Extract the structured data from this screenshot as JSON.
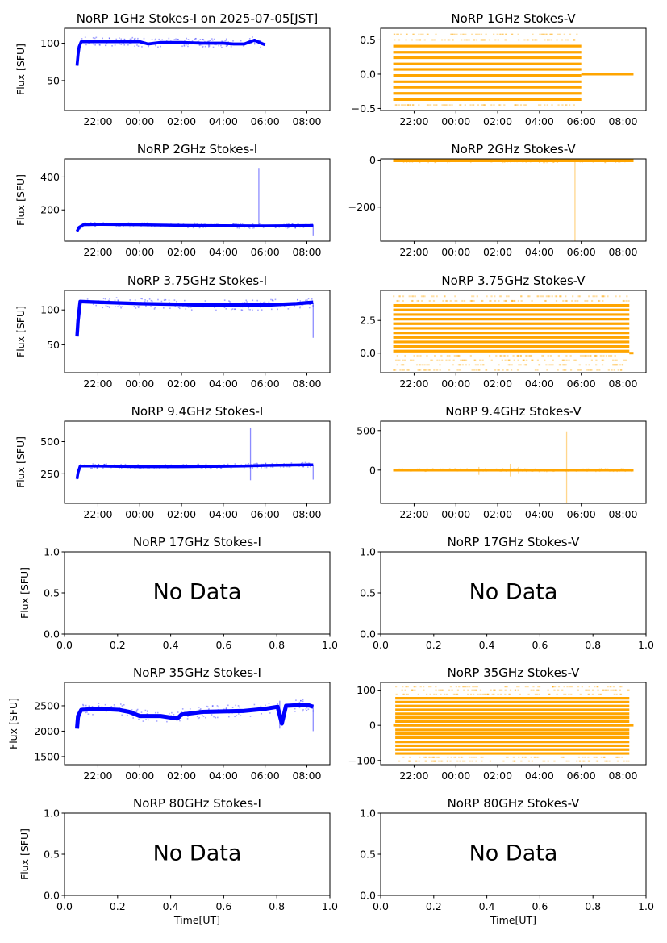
{
  "figure_title": "NoRP 1GHz Stokes-I on 2025-07-05[JST]",
  "colors": {
    "stokes_i": "#0000ff",
    "stokes_v": "#ffa500",
    "axis": "#000000"
  },
  "chart_data": [
    {
      "id": "1ghz-i",
      "type": "scatter",
      "title": "NoRP 1GHz Stokes-I on 2025-07-05[JST]",
      "ylabel": "Flux [SFU]",
      "xlabel": "",
      "stokes": "I",
      "has_data": true,
      "xlim": [
        20.4,
        33.1
      ],
      "ylim": [
        10,
        120
      ],
      "yticks": [
        50,
        100
      ],
      "ytick_labels": [
        "50",
        "100"
      ],
      "xticks": [
        22,
        24,
        26,
        28,
        30,
        32
      ],
      "xtick_labels": [
        "22:00",
        "00:00",
        "02:00",
        "04:00",
        "06:00",
        "08:00"
      ],
      "x": [
        21.0,
        21.05,
        21.1,
        21.2,
        21.5,
        22,
        23,
        24,
        24.4,
        25,
        26,
        27,
        28,
        28.5,
        29,
        29.5,
        29.8,
        30.0
      ],
      "y": [
        70,
        85,
        95,
        102,
        102,
        102,
        102,
        102,
        99,
        101,
        101,
        100,
        100,
        99,
        99,
        104,
        100,
        98
      ],
      "band": 4,
      "start": 21.0,
      "end": 30.0,
      "spikes": [
        {
          "x": 29.5,
          "lo": 98,
          "hi": 105
        }
      ]
    },
    {
      "id": "1ghz-v",
      "type": "scatter",
      "title": "NoRP 1GHz Stokes-V",
      "ylabel": "",
      "xlabel": "",
      "stokes": "V",
      "has_data": true,
      "xlim": [
        20.4,
        33.1
      ],
      "ylim": [
        -0.53,
        0.67
      ],
      "yticks": [
        -0.5,
        0.0,
        0.5
      ],
      "ytick_labels": [
        "−0.5",
        "0.0",
        "0.5"
      ],
      "xticks": [
        22,
        24,
        26,
        28,
        30,
        32
      ],
      "xtick_labels": [
        "22:00",
        "00:00",
        "02:00",
        "04:00",
        "06:00",
        "08:00"
      ],
      "levels": [
        -0.45,
        -0.37,
        -0.28,
        -0.19,
        -0.11,
        -0.02,
        0.07,
        0.15,
        0.24,
        0.32,
        0.41,
        0.5,
        0.58
      ],
      "dense_levels": [
        -0.37,
        -0.28,
        -0.19,
        -0.11,
        -0.02,
        0.07,
        0.15,
        0.24,
        0.32,
        0.41
      ],
      "start": 21.0,
      "end": 30.0,
      "tail": {
        "start": 30.0,
        "end": 32.5,
        "y": 0.0
      }
    },
    {
      "id": "2ghz-i",
      "type": "scatter",
      "title": "NoRP 2GHz Stokes-I",
      "ylabel": "Flux [SFU]",
      "xlabel": "",
      "stokes": "I",
      "has_data": true,
      "xlim": [
        20.4,
        33.1
      ],
      "ylim": [
        10,
        510
      ],
      "yticks": [
        200,
        400
      ],
      "ytick_labels": [
        "200",
        "400"
      ],
      "xticks": [
        22,
        24,
        26,
        28,
        30,
        32
      ],
      "xtick_labels": [
        "22:00",
        "00:00",
        "02:00",
        "04:00",
        "06:00",
        "08:00"
      ],
      "x": [
        21.0,
        21.1,
        21.3,
        22,
        24,
        26,
        28,
        30,
        32,
        32.3
      ],
      "y": [
        70,
        95,
        110,
        112,
        110,
        106,
        104,
        103,
        105,
        105
      ],
      "band": 10,
      "start": 21.0,
      "end": 32.3,
      "spikes": [
        {
          "x": 29.7,
          "lo": 100,
          "hi": 455
        },
        {
          "x": 32.3,
          "lo": 45,
          "hi": 110
        }
      ]
    },
    {
      "id": "2ghz-v",
      "type": "scatter",
      "title": "NoRP 2GHz Stokes-V",
      "ylabel": "",
      "xlabel": "",
      "stokes": "V",
      "has_data": true,
      "xlim": [
        20.4,
        33.1
      ],
      "ylim": [
        -345,
        5
      ],
      "yticks": [
        -200,
        0
      ],
      "ytick_labels": [
        "−200",
        "0"
      ],
      "xticks": [
        22,
        24,
        26,
        28,
        30,
        32
      ],
      "xtick_labels": [
        "22:00",
        "00:00",
        "02:00",
        "04:00",
        "06:00",
        "08:00"
      ],
      "x": [
        21.0,
        32.5
      ],
      "y": [
        -3,
        -3
      ],
      "band": 5,
      "start": 21.0,
      "end": 32.5,
      "spikes": [
        {
          "x": 29.7,
          "lo": -345,
          "hi": -5
        }
      ]
    },
    {
      "id": "3.75ghz-i",
      "type": "scatter",
      "title": "NoRP 3.75GHz Stokes-I",
      "ylabel": "Flux [SFU]",
      "xlabel": "",
      "stokes": "I",
      "has_data": true,
      "xlim": [
        20.4,
        33.1
      ],
      "ylim": [
        10,
        128
      ],
      "yticks": [
        50,
        100
      ],
      "ytick_labels": [
        "50",
        "100"
      ],
      "xticks": [
        22,
        24,
        26,
        28,
        30,
        32
      ],
      "xtick_labels": [
        "22:00",
        "00:00",
        "02:00",
        "04:00",
        "06:00",
        "08:00"
      ],
      "x": [
        21.0,
        21.05,
        21.15,
        22,
        24,
        26,
        27,
        28,
        30,
        31.5,
        32.3
      ],
      "y": [
        62,
        85,
        112,
        111,
        109,
        108,
        107,
        107,
        107,
        109,
        111
      ],
      "band": 5,
      "start": 21.0,
      "end": 32.3,
      "spikes": [
        {
          "x": 32.3,
          "lo": 60,
          "hi": 110
        }
      ]
    },
    {
      "id": "3.75ghz-v",
      "type": "scatter",
      "title": "NoRP 3.75GHz Stokes-V",
      "ylabel": "",
      "xlabel": "",
      "stokes": "V",
      "has_data": true,
      "xlim": [
        20.4,
        33.1
      ],
      "ylim": [
        -1.5,
        4.8
      ],
      "yticks": [
        0.0,
        2.5
      ],
      "ytick_labels": [
        "0.0",
        "2.5"
      ],
      "xticks": [
        22,
        24,
        26,
        28,
        30,
        32
      ],
      "xtick_labels": [
        "22:00",
        "00:00",
        "02:00",
        "04:00",
        "06:00",
        "08:00"
      ],
      "levels": [
        -1.3,
        -0.9,
        -0.55,
        -0.2,
        0.15,
        0.5,
        0.85,
        1.2,
        1.55,
        1.9,
        2.25,
        2.6,
        2.95,
        3.3,
        3.65,
        4.0,
        4.35
      ],
      "dense_levels": [
        0.15,
        0.5,
        0.85,
        1.2,
        1.55,
        1.9,
        2.25,
        2.6,
        2.95,
        3.3,
        3.65
      ],
      "start": 21.0,
      "end": 32.3,
      "tail": {
        "start": 32.3,
        "end": 32.5,
        "y": 0.0
      }
    },
    {
      "id": "9.4ghz-i",
      "type": "scatter",
      "title": "NoRP 9.4GHz Stokes-I",
      "ylabel": "Flux [SFU]",
      "xlabel": "",
      "stokes": "I",
      "has_data": true,
      "xlim": [
        20.4,
        33.1
      ],
      "ylim": [
        20,
        660
      ],
      "yticks": [
        250,
        500
      ],
      "ytick_labels": [
        "250",
        "500"
      ],
      "xticks": [
        22,
        24,
        26,
        28,
        30,
        32
      ],
      "xtick_labels": [
        "22:00",
        "00:00",
        "02:00",
        "04:00",
        "06:00",
        "08:00"
      ],
      "x": [
        21.0,
        21.05,
        21.15,
        22,
        24,
        26,
        28,
        29,
        30,
        32,
        32.3
      ],
      "y": [
        210,
        260,
        310,
        310,
        305,
        305,
        308,
        310,
        315,
        320,
        320
      ],
      "band": 12,
      "start": 21.0,
      "end": 32.3,
      "spikes": [
        {
          "x": 29.3,
          "lo": 200,
          "hi": 610
        },
        {
          "x": 32.3,
          "lo": 205,
          "hi": 320
        }
      ]
    },
    {
      "id": "9.4ghz-v",
      "type": "scatter",
      "title": "NoRP 9.4GHz Stokes-V",
      "ylabel": "",
      "xlabel": "",
      "stokes": "V",
      "has_data": true,
      "xlim": [
        20.4,
        33.1
      ],
      "ylim": [
        -420,
        620
      ],
      "yticks": [
        0,
        500
      ],
      "ytick_labels": [
        "0",
        "500"
      ],
      "xticks": [
        22,
        24,
        26,
        28,
        30,
        32
      ],
      "xtick_labels": [
        "22:00",
        "00:00",
        "02:00",
        "04:00",
        "06:00",
        "08:00"
      ],
      "x": [
        21.0,
        32.5
      ],
      "y": [
        0,
        0
      ],
      "band": 12,
      "start": 21.0,
      "end": 32.5,
      "spikes": [
        {
          "x": 29.3,
          "lo": -410,
          "hi": 490
        },
        {
          "x": 26.6,
          "lo": -80,
          "hi": 80
        },
        {
          "x": 27.0,
          "lo": -40,
          "hi": 40
        },
        {
          "x": 25.1,
          "lo": -60,
          "hi": 40
        }
      ]
    },
    {
      "id": "17ghz-i",
      "type": "empty",
      "title": "NoRP 17GHz Stokes-I",
      "ylabel": "Flux [SFU]",
      "xlabel": "",
      "stokes": "I",
      "has_data": false,
      "message": "No Data",
      "xlim": [
        0,
        1
      ],
      "ylim": [
        0,
        1
      ],
      "yticks": [
        0,
        0.5,
        1
      ],
      "ytick_labels": [
        "0.0",
        "0.5",
        "1.0"
      ],
      "xticks": [
        0,
        0.2,
        0.4,
        0.6,
        0.8,
        1.0
      ],
      "xtick_labels": [
        "0.0",
        "0.2",
        "0.4",
        "0.6",
        "0.8",
        "1.0"
      ]
    },
    {
      "id": "17ghz-v",
      "type": "empty",
      "title": "NoRP 17GHz Stokes-V",
      "ylabel": "",
      "xlabel": "",
      "stokes": "V",
      "has_data": false,
      "message": "No Data",
      "xlim": [
        0,
        1
      ],
      "ylim": [
        0,
        1
      ],
      "yticks": [
        0,
        0.5,
        1
      ],
      "ytick_labels": [
        "0.0",
        "0.5",
        "1.0"
      ],
      "xticks": [
        0,
        0.2,
        0.4,
        0.6,
        0.8,
        1.0
      ],
      "xtick_labels": [
        "0.0",
        "0.2",
        "0.4",
        "0.6",
        "0.8",
        "1.0"
      ]
    },
    {
      "id": "35ghz-i",
      "type": "scatter",
      "title": "NoRP 35GHz Stokes-I",
      "ylabel": "Flux [SFU]",
      "xlabel": "",
      "stokes": "I",
      "has_data": true,
      "xlim": [
        20.4,
        33.1
      ],
      "ylim": [
        1340,
        2960
      ],
      "yticks": [
        1500,
        2000,
        2500
      ],
      "ytick_labels": [
        "1500",
        "2000",
        "2500"
      ],
      "xticks": [
        22,
        24,
        26,
        28,
        30,
        32
      ],
      "xtick_labels": [
        "22:00",
        "00:00",
        "02:00",
        "04:00",
        "06:00",
        "08:00"
      ],
      "x": [
        21.0,
        21.05,
        21.2,
        22,
        23,
        23.5,
        24,
        25,
        25.8,
        26,
        27,
        28,
        29,
        30,
        30.6,
        30.8,
        31,
        32,
        32.3
      ],
      "y": [
        2050,
        2300,
        2420,
        2440,
        2420,
        2380,
        2300,
        2300,
        2250,
        2330,
        2380,
        2390,
        2400,
        2440,
        2480,
        2150,
        2500,
        2520,
        2480
      ],
      "band": 80,
      "start": 21.0,
      "end": 32.3,
      "spikes": [
        {
          "x": 30.7,
          "lo": 2050,
          "hi": 2600
        },
        {
          "x": 32.3,
          "lo": 2000,
          "hi": 2500
        }
      ]
    },
    {
      "id": "35ghz-v",
      "type": "scatter",
      "title": "NoRP 35GHz Stokes-V",
      "ylabel": "",
      "xlabel": "",
      "stokes": "V",
      "has_data": true,
      "xlim": [
        20.4,
        33.1
      ],
      "ylim": [
        -112,
        122
      ],
      "yticks": [
        -100,
        0,
        100
      ],
      "ytick_labels": [
        "−100",
        "0",
        "100"
      ],
      "levels": [
        -102,
        -91,
        -80,
        -69,
        -58,
        -47,
        -35,
        -24,
        -13,
        0,
        11,
        22,
        33,
        44,
        55,
        66,
        77,
        88,
        100,
        110
      ],
      "dense_levels": [
        -80,
        -69,
        -58,
        -47,
        -35,
        -24,
        -13,
        0,
        11,
        22,
        33,
        44,
        55,
        66,
        77
      ],
      "xticks": [
        22,
        24,
        26,
        28,
        30,
        32
      ],
      "xtick_labels": [
        "22:00",
        "00:00",
        "02:00",
        "04:00",
        "06:00",
        "08:00"
      ],
      "start": 21.1,
      "end": 32.3,
      "tail": {
        "start": 21.0,
        "end": 32.5,
        "y": 0
      }
    },
    {
      "id": "80ghz-i",
      "type": "empty",
      "title": "NoRP 80GHz Stokes-I",
      "ylabel": "Flux [SFU]",
      "xlabel": "Time[UT]",
      "stokes": "I",
      "has_data": false,
      "message": "No Data",
      "xlim": [
        0,
        1
      ],
      "ylim": [
        0,
        1
      ],
      "yticks": [
        0,
        0.5,
        1
      ],
      "ytick_labels": [
        "0.0",
        "0.5",
        "1.0"
      ],
      "xticks": [
        0,
        0.2,
        0.4,
        0.6,
        0.8,
        1.0
      ],
      "xtick_labels": [
        "0.0",
        "0.2",
        "0.4",
        "0.6",
        "0.8",
        "1.0"
      ]
    },
    {
      "id": "80ghz-v",
      "type": "empty",
      "title": "NoRP 80GHz Stokes-V",
      "ylabel": "",
      "xlabel": "Time[UT]",
      "stokes": "V",
      "has_data": false,
      "message": "No Data",
      "xlim": [
        0,
        1
      ],
      "ylim": [
        0,
        1
      ],
      "yticks": [
        0,
        0.5,
        1
      ],
      "ytick_labels": [
        "0.0",
        "0.5",
        "1.0"
      ],
      "xticks": [
        0,
        0.2,
        0.4,
        0.6,
        0.8,
        1.0
      ],
      "xtick_labels": [
        "0.0",
        "0.2",
        "0.4",
        "0.6",
        "0.8",
        "1.0"
      ]
    }
  ]
}
